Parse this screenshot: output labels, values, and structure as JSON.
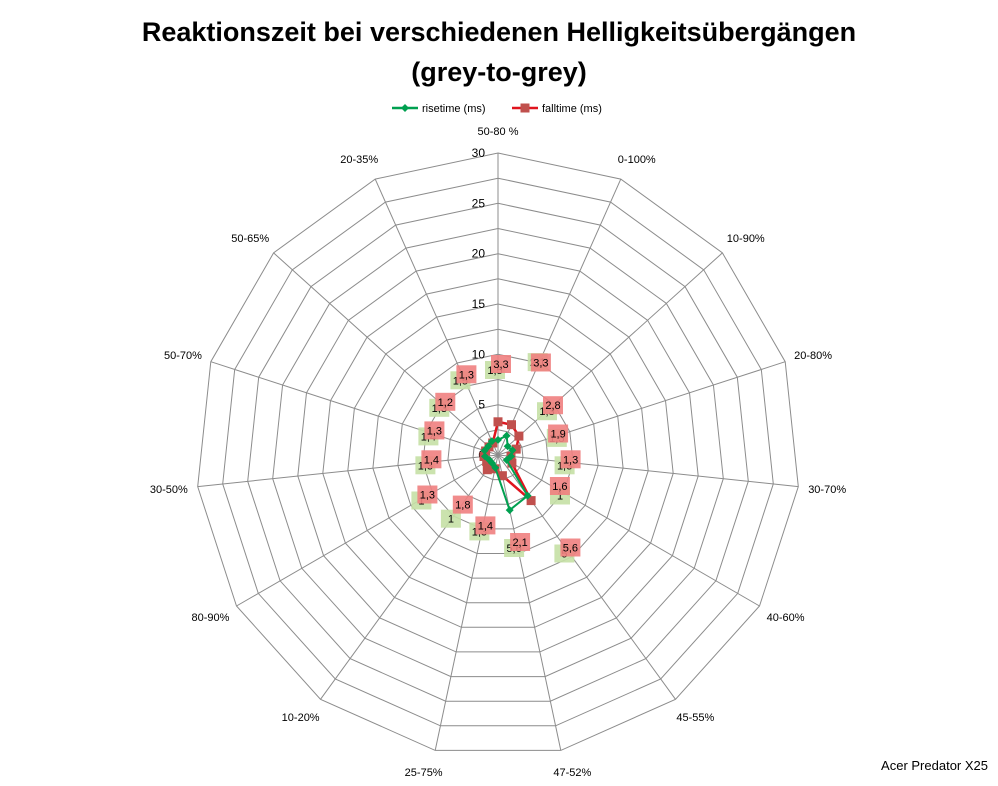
{
  "chart_data": {
    "type": "radar",
    "title": "Reaktionszeit bei verschiedenen Helligkeitsübergängen",
    "subtitle": "(grey-to-grey)",
    "categories": [
      "50-80 %",
      "0-100%",
      "10-90%",
      "20-80%",
      "30-70%",
      "40-60%",
      "45-55%",
      "47-52%",
      "25-75%",
      "10-20%",
      "80-90%",
      "30-50%",
      "50-70%",
      "50-65%",
      "20-35%"
    ],
    "rlim": [
      0,
      30
    ],
    "ticks": [
      "0",
      "5",
      "10",
      "15",
      "20",
      "25",
      "30"
    ],
    "grid": true,
    "legend_position": "top",
    "series": [
      {
        "name": "risetime (ms)",
        "color": "#00a050",
        "label_bg": "#c5e0a5",
        "values": [
          1.5,
          2.1,
          1.3,
          1.5,
          1.3,
          1,
          5,
          5.6,
          1.3,
          1,
          1,
          1.3,
          1.4,
          1.3,
          1.5
        ],
        "labels": [
          "1,5",
          "2,1",
          "1,3",
          "1,5",
          "1,3",
          "1",
          "5",
          "5,6",
          "1,3",
          "1",
          "1",
          "1,3",
          "1,4",
          "1,3",
          "1,5"
        ]
      },
      {
        "name": "falltime (ms)",
        "color": "#e0141e",
        "marker_color": "#c0504d",
        "label_bg": "#f08080",
        "values": [
          3.3,
          3.3,
          2.8,
          1.9,
          1.3,
          1.6,
          5.6,
          2.1,
          1.4,
          1.8,
          1.3,
          1.4,
          1.3,
          1.2,
          1.3
        ],
        "labels": [
          "3,3",
          "3,3",
          "2,8",
          "1,9",
          "1,3",
          "1,6",
          "5,6",
          "2,1",
          "1,4",
          "1,8",
          "1,3",
          "1,4",
          "1,3",
          "1,2",
          "1,3"
        ]
      }
    ]
  },
  "watermark": "Acer Predator X25"
}
